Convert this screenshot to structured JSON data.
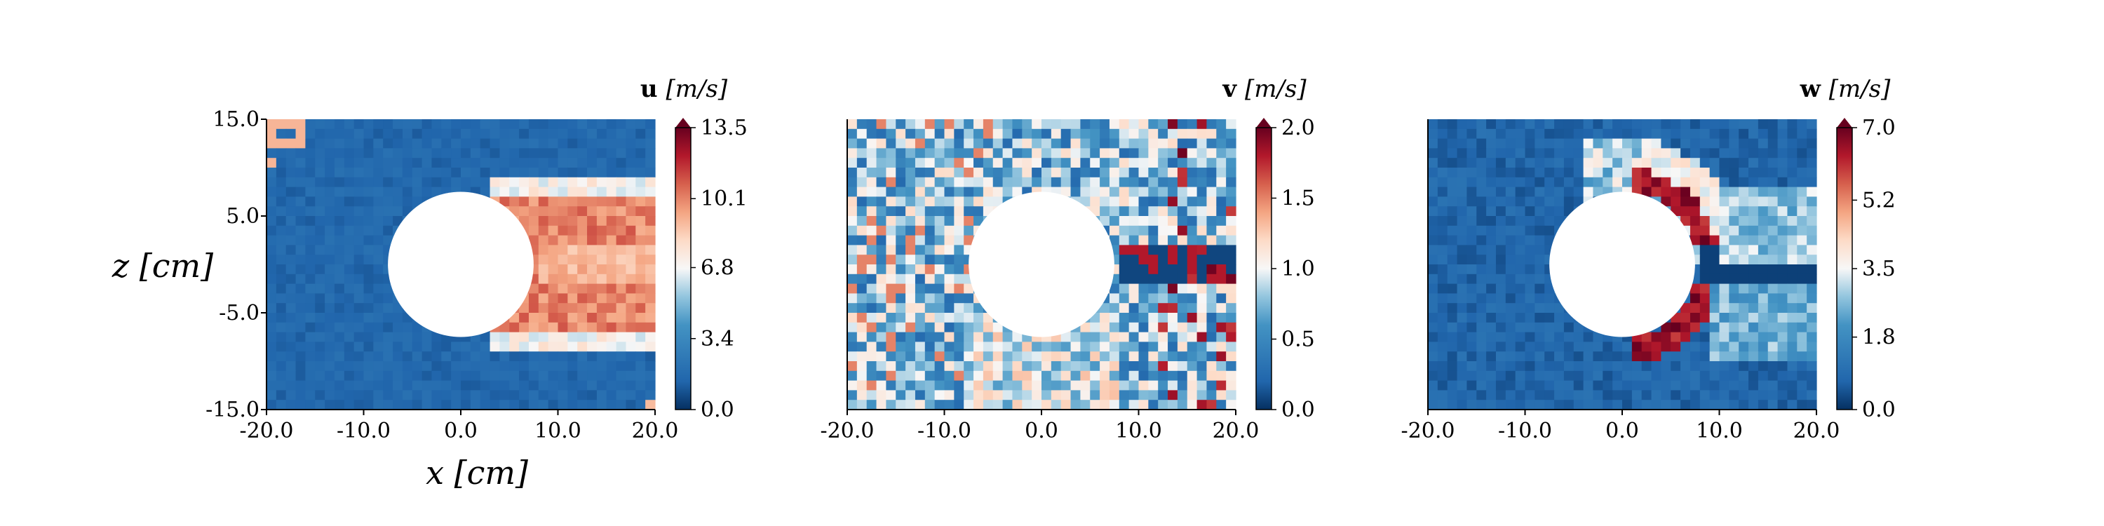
{
  "figure": {
    "xlabel": "x [cm]",
    "ylabel": "z [cm]"
  },
  "chart_data": [
    {
      "type": "heatmap",
      "field": "u",
      "colorbar_label": "u [m/s]",
      "colorbar_label_bold": "u",
      "colorbar_label_unit": "[m/s]",
      "x_ticks": [
        "-20.0",
        "-10.0",
        "0.0",
        "10.0",
        "20.0"
      ],
      "y_ticks": [
        "15.0",
        "5.0",
        "-5.0",
        "-15.0"
      ],
      "xlim": [
        -20,
        20
      ],
      "ylim": [
        -15,
        15
      ],
      "colorbar_ticks": [
        "0.0",
        "3.4",
        "6.8",
        "10.1",
        "13.5"
      ],
      "vmin": 0.0,
      "vmax": 13.5,
      "colormap": "RdBu_r",
      "cylinder": {
        "center_x": 0,
        "center_z": 0,
        "radius": 7.5
      },
      "grid": "cells approx 1 cm",
      "description_values": {
        "background": 1.5,
        "wake_core_max": 12.0,
        "inlet_corner_patch": 9.0
      }
    },
    {
      "type": "heatmap",
      "field": "v",
      "colorbar_label": "v [m/s]",
      "colorbar_label_bold": "v",
      "colorbar_label_unit": "[m/s]",
      "x_ticks": [
        "-20.0",
        "-10.0",
        "0.0",
        "10.0",
        "20.0"
      ],
      "y_ticks": [],
      "xlim": [
        -20,
        20
      ],
      "ylim": [
        -15,
        15
      ],
      "colorbar_ticks": [
        "0.0",
        "0.5",
        "1.0",
        "1.5",
        "2.0"
      ],
      "vmin": 0.0,
      "vmax": 2.0,
      "colormap": "RdBu_r",
      "cylinder": {
        "center_x": 0,
        "center_z": 0,
        "radius": 7.5
      },
      "description_values": {
        "background": 0.45,
        "wake_band": 0.05,
        "wake_spikes_max": 2.0
      }
    },
    {
      "type": "heatmap",
      "field": "w",
      "colorbar_label": "w [m/s]",
      "colorbar_label_bold": "w",
      "colorbar_label_unit": "[m/s]",
      "x_ticks": [
        "-20.0",
        "-10.0",
        "0.0",
        "10.0",
        "20.0"
      ],
      "y_ticks": [],
      "xlim": [
        -20,
        20
      ],
      "ylim": [
        -15,
        15
      ],
      "colorbar_ticks": [
        "0.0",
        "1.8",
        "3.5",
        "5.2",
        "7.0"
      ],
      "vmin": 0.0,
      "vmax": 7.0,
      "colormap": "RdBu_r",
      "cylinder": {
        "center_x": 0,
        "center_z": 0,
        "radius": 7.5
      },
      "description_values": {
        "background": 0.8,
        "cylinder_edge_max": 7.0,
        "wake_band": 0.2
      }
    }
  ]
}
